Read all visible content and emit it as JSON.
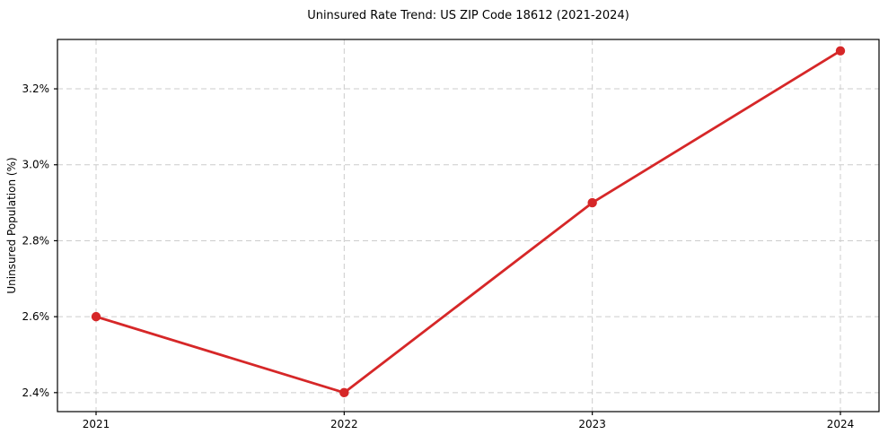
{
  "figure": {
    "background_color": "#ffffff",
    "text_color": "#000000",
    "grid_color": "#cccccc",
    "spine_color": "#000000"
  },
  "chart_data": {
    "type": "line",
    "title": "Uninsured Rate Trend: US ZIP Code 18612 (2021-2024)",
    "xlabel": "",
    "ylabel": "Uninsured Population (%)",
    "categories": [
      "2021",
      "2022",
      "2023",
      "2024"
    ],
    "series": [
      {
        "name": "Uninsured rate",
        "values": [
          2.6,
          2.4,
          2.9,
          3.3
        ],
        "color": "#d62728",
        "marker": "circle"
      }
    ],
    "xticks": [
      {
        "value": 2021,
        "label": "2021"
      },
      {
        "value": 2022,
        "label": "2022"
      },
      {
        "value": 2023,
        "label": "2023"
      },
      {
        "value": 2024,
        "label": "2024"
      }
    ],
    "yticks": [
      {
        "value": 2.4,
        "label": "2.4%"
      },
      {
        "value": 2.6,
        "label": "2.6%"
      },
      {
        "value": 2.8,
        "label": "2.8%"
      },
      {
        "value": 3.0,
        "label": "3.0%"
      },
      {
        "value": 3.2,
        "label": "3.2%"
      }
    ],
    "ylim": [
      2.35,
      3.33
    ],
    "grid": true,
    "grid_style": "dashed",
    "legend_position": "none"
  }
}
